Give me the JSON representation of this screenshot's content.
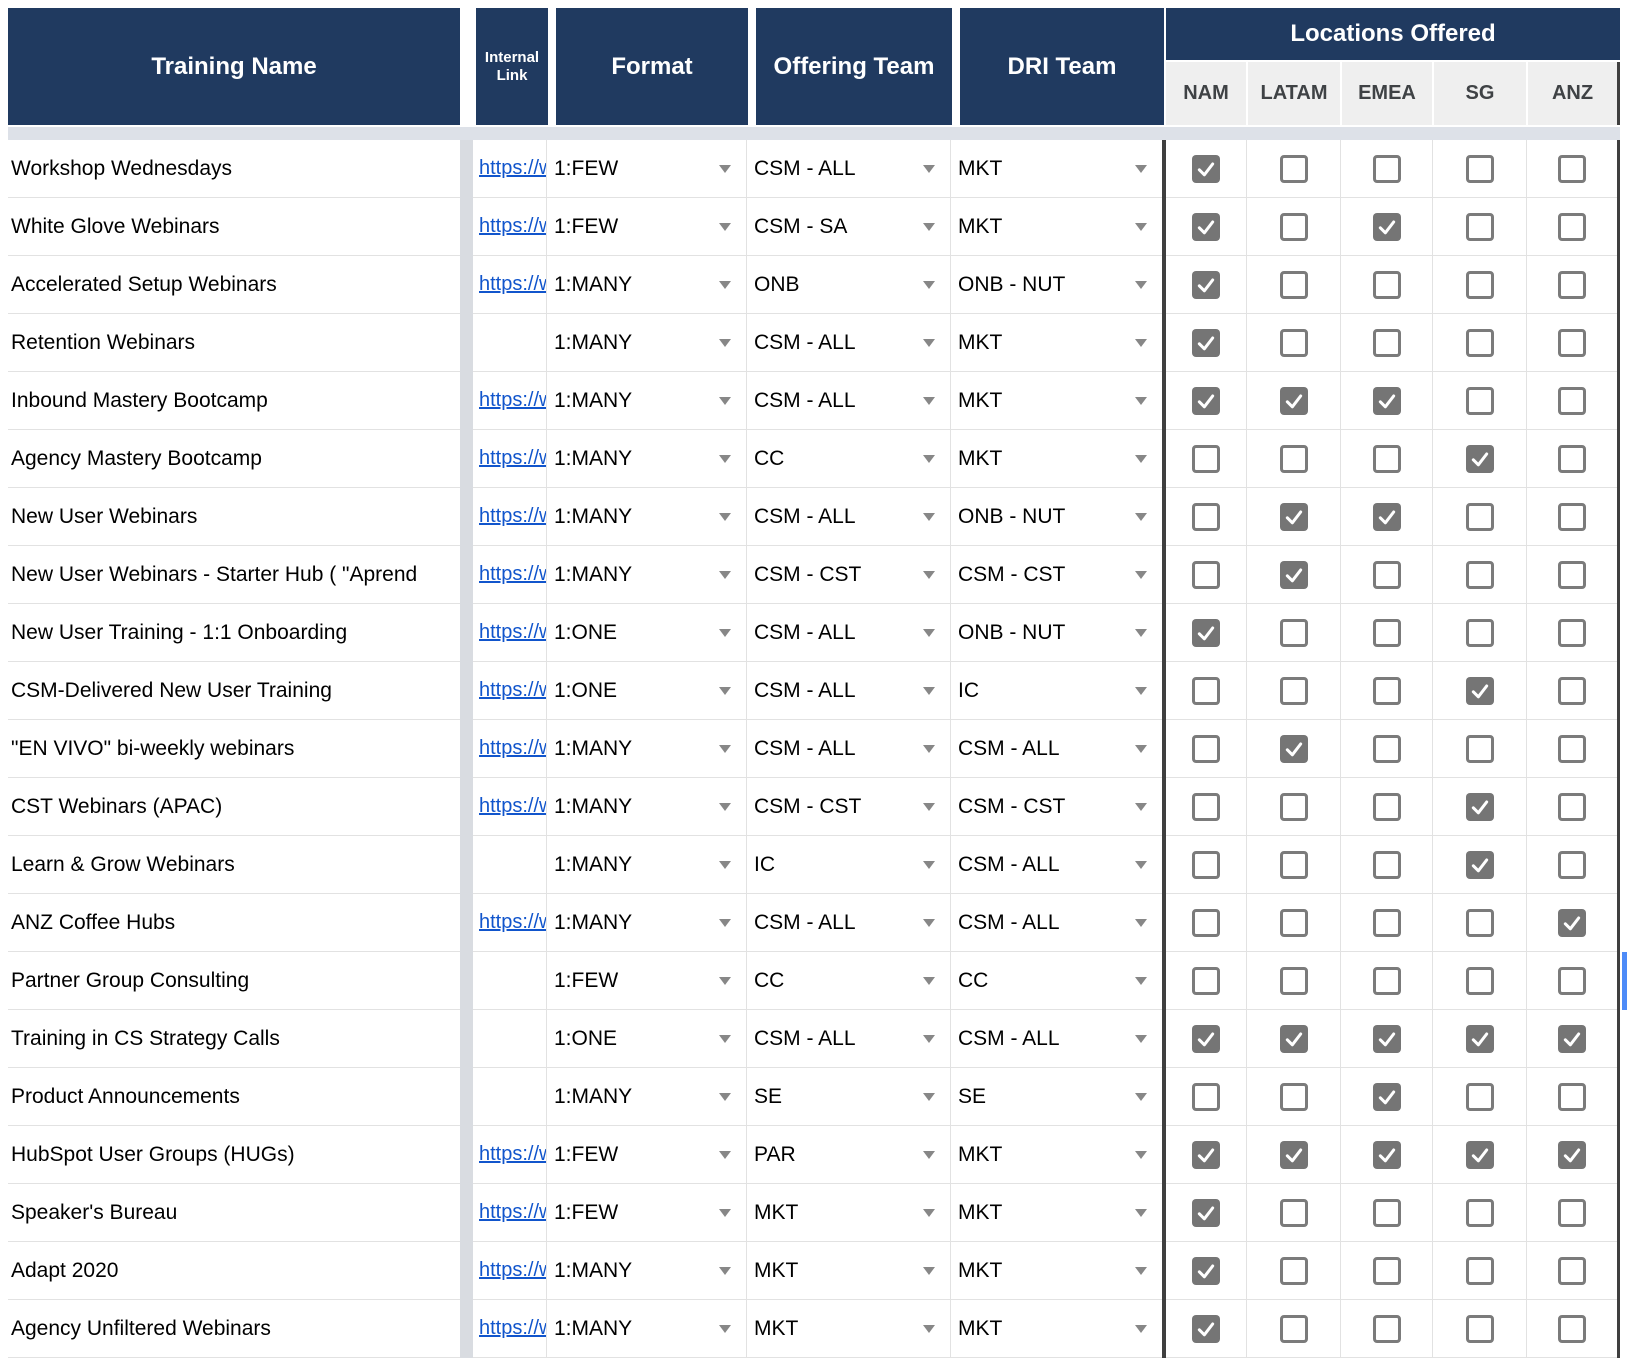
{
  "table": {
    "headers": {
      "training_name": "Training Name",
      "internal_link": "Internal Link",
      "format": "Format",
      "offering_team": "Offering Team",
      "dri_team": "DRI Team",
      "locations_offered": "Locations Offered",
      "locations": [
        "NAM",
        "LATAM",
        "EMEA",
        "SG",
        "ANZ"
      ]
    },
    "link_display_text": "https://w",
    "rows": [
      {
        "name": "Workshop Wednesdays",
        "has_link": true,
        "format": "1:FEW",
        "offering_team": "CSM - ALL",
        "dri_team": "MKT",
        "locations": [
          true,
          false,
          false,
          false,
          false
        ]
      },
      {
        "name": "White Glove Webinars",
        "has_link": true,
        "format": "1:FEW",
        "offering_team": "CSM - SA",
        "dri_team": "MKT",
        "locations": [
          true,
          false,
          true,
          false,
          false
        ]
      },
      {
        "name": "Accelerated Setup Webinars",
        "has_link": true,
        "format": "1:MANY",
        "offering_team": "ONB",
        "dri_team": "ONB - NUT",
        "locations": [
          true,
          false,
          false,
          false,
          false
        ]
      },
      {
        "name": "Retention Webinars",
        "has_link": false,
        "format": "1:MANY",
        "offering_team": "CSM - ALL",
        "dri_team": "MKT",
        "locations": [
          true,
          false,
          false,
          false,
          false
        ]
      },
      {
        "name": "Inbound Mastery Bootcamp",
        "has_link": true,
        "format": "1:MANY",
        "offering_team": "CSM - ALL",
        "dri_team": "MKT",
        "locations": [
          true,
          true,
          true,
          false,
          false
        ]
      },
      {
        "name": "Agency Mastery Bootcamp",
        "has_link": true,
        "format": "1:MANY",
        "offering_team": "CC",
        "dri_team": "MKT",
        "locations": [
          false,
          false,
          false,
          true,
          false
        ]
      },
      {
        "name": "New User Webinars",
        "has_link": true,
        "format": "1:MANY",
        "offering_team": "CSM - ALL",
        "dri_team": "ONB - NUT",
        "locations": [
          false,
          true,
          true,
          false,
          false
        ]
      },
      {
        "name": "New User Webinars - Starter Hub ( \"Aprend",
        "has_link": true,
        "format": "1:MANY",
        "offering_team": "CSM - CST",
        "dri_team": "CSM - CST",
        "locations": [
          false,
          true,
          false,
          false,
          false
        ]
      },
      {
        "name": "New User Training - 1:1 Onboarding",
        "has_link": true,
        "format": "1:ONE",
        "offering_team": "CSM - ALL",
        "dri_team": "ONB - NUT",
        "locations": [
          true,
          false,
          false,
          false,
          false
        ]
      },
      {
        "name": "CSM-Delivered New User Training",
        "has_link": true,
        "format": "1:ONE",
        "offering_team": "CSM - ALL",
        "dri_team": "IC",
        "locations": [
          false,
          false,
          false,
          true,
          false
        ]
      },
      {
        "name": "\"EN VIVO\" bi-weekly webinars",
        "has_link": true,
        "format": "1:MANY",
        "offering_team": "CSM - ALL",
        "dri_team": "CSM - ALL",
        "locations": [
          false,
          true,
          false,
          false,
          false
        ]
      },
      {
        "name": "CST Webinars (APAC)",
        "has_link": true,
        "format": "1:MANY",
        "offering_team": "CSM - CST",
        "dri_team": "CSM - CST",
        "locations": [
          false,
          false,
          false,
          true,
          false
        ]
      },
      {
        "name": "Learn & Grow Webinars",
        "has_link": false,
        "format": "1:MANY",
        "offering_team": "IC",
        "dri_team": "CSM - ALL",
        "locations": [
          false,
          false,
          false,
          true,
          false
        ]
      },
      {
        "name": "ANZ Coffee Hubs",
        "has_link": true,
        "format": "1:MANY",
        "offering_team": "CSM - ALL",
        "dri_team": "CSM - ALL",
        "locations": [
          false,
          false,
          false,
          false,
          true
        ]
      },
      {
        "name": "Partner Group Consulting",
        "has_link": false,
        "format": "1:FEW",
        "offering_team": "CC",
        "dri_team": "CC",
        "locations": [
          false,
          false,
          false,
          false,
          false
        ],
        "selection_marker": true
      },
      {
        "name": "Training in CS Strategy Calls",
        "has_link": false,
        "format": "1:ONE",
        "offering_team": "CSM - ALL",
        "dri_team": "CSM - ALL",
        "locations": [
          true,
          true,
          true,
          true,
          true
        ]
      },
      {
        "name": "Product Announcements",
        "has_link": false,
        "format": "1:MANY",
        "offering_team": "SE",
        "dri_team": "SE",
        "locations": [
          false,
          false,
          true,
          false,
          false
        ]
      },
      {
        "name": "HubSpot User Groups (HUGs)",
        "has_link": true,
        "format": "1:FEW",
        "offering_team": "PAR",
        "dri_team": "MKT",
        "locations": [
          true,
          true,
          true,
          true,
          true
        ]
      },
      {
        "name": "Speaker's Bureau",
        "has_link": true,
        "format": "1:FEW",
        "offering_team": "MKT",
        "dri_team": "MKT",
        "locations": [
          true,
          false,
          false,
          false,
          false
        ]
      },
      {
        "name": "Adapt 2020",
        "has_link": true,
        "format": "1:MANY",
        "offering_team": "MKT",
        "dri_team": "MKT",
        "locations": [
          true,
          false,
          false,
          false,
          false
        ]
      },
      {
        "name": "Agency Unfiltered Webinars",
        "has_link": true,
        "format": "1:MANY",
        "offering_team": "MKT",
        "dri_team": "MKT",
        "locations": [
          true,
          false,
          false,
          false,
          false
        ]
      }
    ]
  },
  "colors": {
    "header_bg": "#203a60",
    "header_text": "#ffffff",
    "subheader_bg": "#efefef",
    "checkbox_gray": "#757575",
    "link_blue": "#1155cc",
    "divider_dark": "#3f3f3f",
    "freeze_strip": "#dde1e8",
    "selection_blue": "#4d8bf8",
    "row_border": "#e2e2e2",
    "hidden_column_band": "#d9dce1"
  }
}
